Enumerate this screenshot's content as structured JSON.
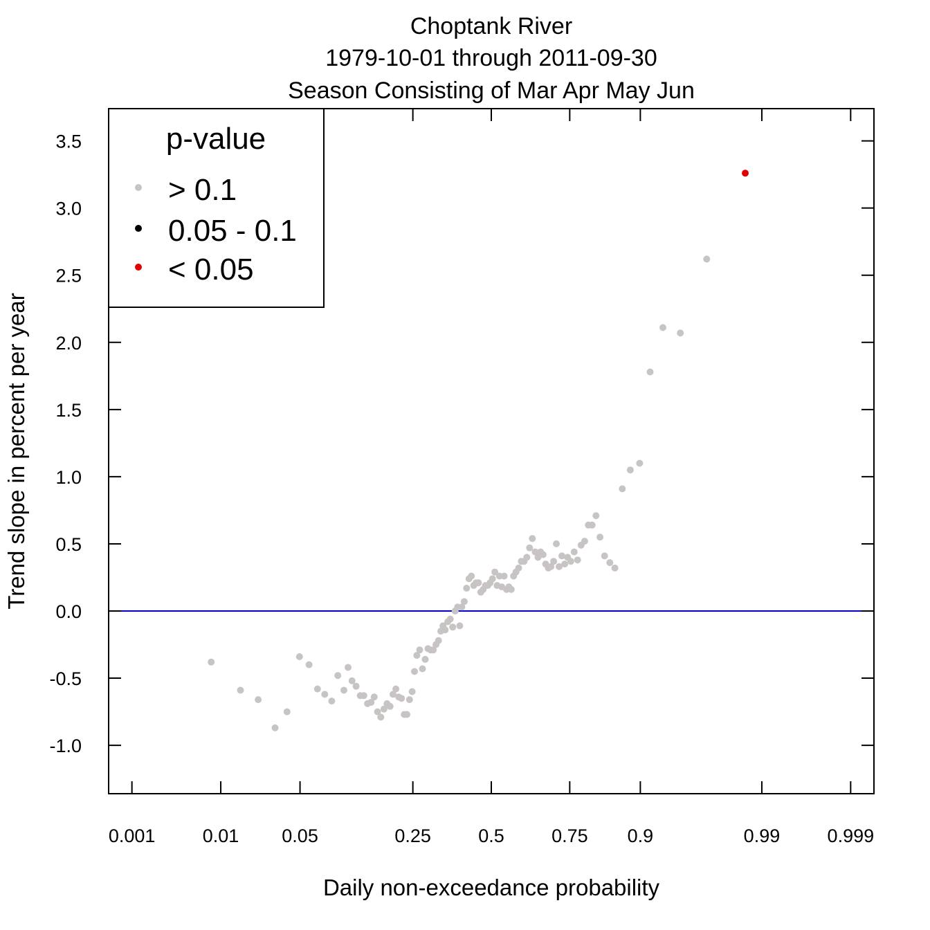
{
  "chart_data": {
    "type": "scatter",
    "title": [
      "Choptank River",
      "1979-10-01 through 2011-09-30",
      "Season Consisting of Mar Apr May Jun"
    ],
    "xlabel": "Daily non-exceedance probability",
    "ylabel": "Trend slope in percent per year",
    "x_scale": "normal-probability",
    "x_ticks": [
      0.001,
      0.01,
      0.05,
      0.25,
      0.5,
      0.75,
      0.9,
      0.99,
      0.999
    ],
    "x_tick_labels": [
      "0.001",
      "0.01",
      "0.05",
      "0.25",
      "0.5",
      "0.75",
      "0.9",
      "0.99",
      "0.999"
    ],
    "xlim": [
      0.0005,
      0.9995
    ],
    "y_ticks": [
      -1.0,
      -0.5,
      0.0,
      0.5,
      1.0,
      1.5,
      2.0,
      2.5,
      3.0,
      3.5
    ],
    "y_tick_labels": [
      "-1.0",
      "-0.5",
      "0.0",
      "0.5",
      "1.0",
      "1.5",
      "2.0",
      "2.5",
      "3.0",
      "3.5"
    ],
    "ylim": [
      -1.36,
      3.74
    ],
    "reference_line": {
      "y": 0,
      "color": "#0000cd"
    },
    "legend": {
      "title": "p-value",
      "position": "top-left",
      "entries": [
        {
          "label": "> 0.1",
          "color": "#c8c4c4"
        },
        {
          "label": "0.05 - 0.1",
          "color": "#000000"
        },
        {
          "label": "< 0.05",
          "color": "#e00000"
        }
      ]
    },
    "grid": false,
    "series": [
      {
        "class": "> 0.1",
        "color": "#c8c4c4",
        "points": [
          [
            0.008,
            -0.38
          ],
          [
            0.0155,
            -0.59
          ],
          [
            0.0225,
            -0.66
          ],
          [
            0.0315,
            -0.87
          ],
          [
            0.0395,
            -0.75
          ],
          [
            0.0495,
            -0.34
          ],
          [
            0.0585,
            -0.4
          ],
          [
            0.0675,
            -0.58
          ],
          [
            0.076,
            -0.62
          ],
          [
            0.085,
            -0.67
          ],
          [
            0.0935,
            -0.48
          ],
          [
            0.1025,
            -0.59
          ],
          [
            0.109,
            -0.42
          ],
          [
            0.1155,
            -0.52
          ],
          [
            0.1225,
            -0.56
          ],
          [
            0.13,
            -0.63
          ],
          [
            0.1365,
            -0.63
          ],
          [
            0.1435,
            -0.69
          ],
          [
            0.1505,
            -0.68
          ],
          [
            0.157,
            -0.64
          ],
          [
            0.164,
            -0.75
          ],
          [
            0.171,
            -0.79
          ],
          [
            0.178,
            -0.73
          ],
          [
            0.185,
            -0.69
          ],
          [
            0.192,
            -0.71
          ],
          [
            0.199,
            -0.62
          ],
          [
            0.206,
            -0.58
          ],
          [
            0.213,
            -0.64
          ],
          [
            0.22,
            -0.65
          ],
          [
            0.227,
            -0.77
          ],
          [
            0.234,
            -0.77
          ],
          [
            0.241,
            -0.66
          ],
          [
            0.248,
            -0.6
          ],
          [
            0.2545,
            -0.45
          ],
          [
            0.261,
            -0.33
          ],
          [
            0.269,
            -0.29
          ],
          [
            0.277,
            -0.43
          ],
          [
            0.285,
            -0.36
          ],
          [
            0.293,
            -0.28
          ],
          [
            0.301,
            -0.29
          ],
          [
            0.309,
            -0.29
          ],
          [
            0.317,
            -0.25
          ],
          [
            0.325,
            -0.22
          ],
          [
            0.332,
            -0.15
          ],
          [
            0.339,
            -0.11
          ],
          [
            0.346,
            -0.14
          ],
          [
            0.354,
            -0.08
          ],
          [
            0.362,
            -0.06
          ],
          [
            0.37,
            -0.12
          ],
          [
            0.378,
            0.0
          ],
          [
            0.386,
            0.03
          ],
          [
            0.393,
            -0.11
          ],
          [
            0.4,
            0.03
          ],
          [
            0.408,
            0.07
          ],
          [
            0.416,
            0.17
          ],
          [
            0.424,
            0.24
          ],
          [
            0.432,
            0.26
          ],
          [
            0.44,
            0.19
          ],
          [
            0.448,
            0.21
          ],
          [
            0.456,
            0.21
          ],
          [
            0.464,
            0.14
          ],
          [
            0.472,
            0.16
          ],
          [
            0.48,
            0.19
          ],
          [
            0.488,
            0.19
          ],
          [
            0.496,
            0.21
          ],
          [
            0.504,
            0.24
          ],
          [
            0.512,
            0.29
          ],
          [
            0.52,
            0.19
          ],
          [
            0.528,
            0.26
          ],
          [
            0.536,
            0.18
          ],
          [
            0.544,
            0.26
          ],
          [
            0.552,
            0.16
          ],
          [
            0.56,
            0.18
          ],
          [
            0.568,
            0.16
          ],
          [
            0.576,
            0.26
          ],
          [
            0.584,
            0.29
          ],
          [
            0.593,
            0.32
          ],
          [
            0.602,
            0.37
          ],
          [
            0.611,
            0.37
          ],
          [
            0.62,
            0.4
          ],
          [
            0.629,
            0.47
          ],
          [
            0.638,
            0.54
          ],
          [
            0.647,
            0.44
          ],
          [
            0.656,
            0.4
          ],
          [
            0.664,
            0.44
          ],
          [
            0.672,
            0.42
          ],
          [
            0.68,
            0.35
          ],
          [
            0.688,
            0.32
          ],
          [
            0.696,
            0.33
          ],
          [
            0.704,
            0.37
          ],
          [
            0.712,
            0.5
          ],
          [
            0.72,
            0.33
          ],
          [
            0.728,
            0.41
          ],
          [
            0.736,
            0.35
          ],
          [
            0.744,
            0.4
          ],
          [
            0.753,
            0.37
          ],
          [
            0.762,
            0.44
          ],
          [
            0.771,
            0.38
          ],
          [
            0.78,
            0.49
          ],
          [
            0.789,
            0.52
          ],
          [
            0.798,
            0.64
          ],
          [
            0.807,
            0.64
          ],
          [
            0.816,
            0.71
          ],
          [
            0.825,
            0.55
          ],
          [
            0.835,
            0.41
          ],
          [
            0.846,
            0.36
          ],
          [
            0.856,
            0.32
          ],
          [
            0.87,
            0.91
          ],
          [
            0.884,
            1.05
          ],
          [
            0.899,
            1.1
          ],
          [
            0.914,
            1.78
          ],
          [
            0.93,
            2.11
          ],
          [
            0.948,
            2.07
          ],
          [
            0.968,
            2.62
          ]
        ]
      },
      {
        "class": "0.05 - 0.1",
        "color": "#000000",
        "points": []
      },
      {
        "class": "< 0.05",
        "color": "#e00000",
        "points": [
          [
            0.9855,
            3.26
          ]
        ]
      }
    ]
  }
}
